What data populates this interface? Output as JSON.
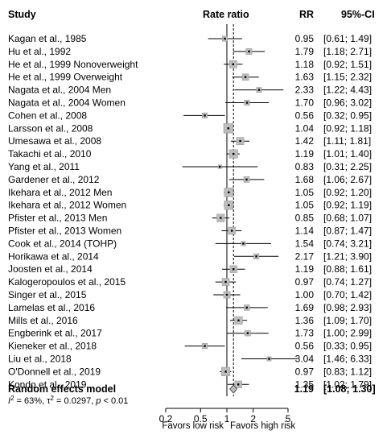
{
  "chart_data": {
    "type": "forest",
    "headers": {
      "study": "Study",
      "rate": "Rate ratio",
      "rr": "RR",
      "ci": "95%-CI"
    },
    "studies": [
      {
        "label": "Kagan et al., 1985",
        "rr": 0.95,
        "lo": 0.61,
        "hi": 1.49,
        "rr_text": "0.95",
        "ci_text": "[0.61; 1.49]",
        "weight": 2.6
      },
      {
        "label": "Hu et al., 1992",
        "rr": 1.79,
        "lo": 1.18,
        "hi": 2.71,
        "rr_text": "1.79",
        "ci_text": "[1.18; 2.71]",
        "weight": 3.2
      },
      {
        "label": "He et al., 1999 Nonoverweight",
        "rr": 1.18,
        "lo": 0.92,
        "hi": 1.51,
        "rr_text": "1.18",
        "ci_text": "[0.92; 1.51]",
        "weight": 4.6
      },
      {
        "label": "He et al., 1999 Overweight",
        "rr": 1.63,
        "lo": 1.15,
        "hi": 2.32,
        "rr_text": "1.63",
        "ci_text": "[1.15; 2.32]",
        "weight": 3.6
      },
      {
        "label": "Nagata et al., 2004 Men",
        "rr": 2.33,
        "lo": 1.22,
        "hi": 4.43,
        "rr_text": "2.33",
        "ci_text": "[1.22; 4.43]",
        "weight": 2.4
      },
      {
        "label": "Nagata et al., 2004 Women",
        "rr": 1.7,
        "lo": 0.96,
        "hi": 3.02,
        "rr_text": "1.70",
        "ci_text": "[0.96; 3.02]",
        "weight": 2.6
      },
      {
        "label": "Cohen et al., 2008",
        "rr": 0.56,
        "lo": 0.32,
        "hi": 0.95,
        "rr_text": "0.56",
        "ci_text": "[0.32; 0.95]",
        "weight": 2.6
      },
      {
        "label": "Larsson et al., 2008",
        "rr": 1.04,
        "lo": 0.92,
        "hi": 1.18,
        "rr_text": "1.04",
        "ci_text": "[0.92; 1.18]",
        "weight": 6.4
      },
      {
        "label": "Umesawa et al., 2008",
        "rr": 1.42,
        "lo": 1.11,
        "hi": 1.81,
        "rr_text": "1.42",
        "ci_text": "[1.11; 1.81]",
        "weight": 4.6
      },
      {
        "label": "Takachi et al., 2010",
        "rr": 1.19,
        "lo": 1.01,
        "hi": 1.4,
        "rr_text": "1.19",
        "ci_text": "[1.01; 1.40]",
        "weight": 5.4
      },
      {
        "label": "Yang et al., 2011",
        "rr": 0.83,
        "lo": 0.31,
        "hi": 2.25,
        "rr_text": "0.83",
        "ci_text": "[0.31; 2.25]",
        "weight": 1.0
      },
      {
        "label": "Gardener et al., 2012",
        "rr": 1.68,
        "lo": 1.06,
        "hi": 2.67,
        "rr_text": "1.68",
        "ci_text": "[1.06; 2.67]",
        "weight": 3.0
      },
      {
        "label": "Ikehara et al., 2012 Men",
        "rr": 1.05,
        "lo": 0.92,
        "hi": 1.2,
        "rr_text": "1.05",
        "ci_text": "[0.92; 1.20]",
        "weight": 5.8
      },
      {
        "label": "Ikehara et al., 2012 Women",
        "rr": 1.05,
        "lo": 0.92,
        "hi": 1.19,
        "rr_text": "1.05",
        "ci_text": "[0.92; 1.19]",
        "weight": 5.8
      },
      {
        "label": "Pfister et al., 2013 Men",
        "rr": 0.85,
        "lo": 0.68,
        "hi": 1.07,
        "rr_text": "0.85",
        "ci_text": "[0.68; 1.07]",
        "weight": 4.8
      },
      {
        "label": "Pfister et al., 2013 Women",
        "rr": 1.14,
        "lo": 0.87,
        "hi": 1.47,
        "rr_text": "1.14",
        "ci_text": "[0.87; 1.47]",
        "weight": 4.4
      },
      {
        "label": "Cook et al., 2014 (TOHP)",
        "rr": 1.54,
        "lo": 0.74,
        "hi": 3.21,
        "rr_text": "1.54",
        "ci_text": "[0.74; 3.21]",
        "weight": 1.8
      },
      {
        "label": "Horikawa et al., 2014",
        "rr": 2.17,
        "lo": 1.21,
        "hi": 3.9,
        "rr_text": "2.17",
        "ci_text": "[1.21; 3.90]",
        "weight": 2.6
      },
      {
        "label": "Joosten et al., 2014",
        "rr": 1.19,
        "lo": 0.88,
        "hi": 1.61,
        "rr_text": "1.19",
        "ci_text": "[0.88; 1.61]",
        "weight": 4.2
      },
      {
        "label": "Kalogeropoulos et al., 2015",
        "rr": 0.97,
        "lo": 0.74,
        "hi": 1.27,
        "rr_text": "0.97",
        "ci_text": "[0.74; 1.27]",
        "weight": 4.4
      },
      {
        "label": "Singer et al., 2015",
        "rr": 1.0,
        "lo": 0.7,
        "hi": 1.42,
        "rr_text": "1.00",
        "ci_text": "[0.70; 1.42]",
        "weight": 3.8
      },
      {
        "label": "Lamelas et al., 2016",
        "rr": 1.69,
        "lo": 0.98,
        "hi": 2.93,
        "rr_text": "1.69",
        "ci_text": "[0.98; 2.93]",
        "weight": 2.8
      },
      {
        "label": "Mills et al., 2016",
        "rr": 1.36,
        "lo": 1.09,
        "hi": 1.7,
        "rr_text": "1.36",
        "ci_text": "[1.09; 1.70]",
        "weight": 4.8
      },
      {
        "label": "Engberink et al., 2017",
        "rr": 1.73,
        "lo": 1.0,
        "hi": 2.99,
        "rr_text": "1.73",
        "ci_text": "[1.00; 2.99]",
        "weight": 2.8
      },
      {
        "label": "Kieneker et al., 2018",
        "rr": 0.56,
        "lo": 0.33,
        "hi": 0.95,
        "rr_text": "0.56",
        "ci_text": "[0.33; 0.95]",
        "weight": 2.6
      },
      {
        "label": "Liu et al., 2018",
        "rr": 3.04,
        "lo": 1.46,
        "hi": 6.33,
        "rr_text": "3.04",
        "ci_text": "[1.46; 6.33]",
        "weight": 1.6
      },
      {
        "label": "O'Donnell et al., 2019",
        "rr": 0.97,
        "lo": 0.83,
        "hi": 1.12,
        "rr_text": "0.97",
        "ci_text": "[0.83; 1.12]",
        "weight": 5.6
      },
      {
        "label": "Kondo et al., 2019",
        "rr": 1.35,
        "lo": 1.02,
        "hi": 1.79,
        "rr_text": "1.35",
        "ci_text": "[1.02; 1.79]",
        "weight": 4.2
      }
    ],
    "summary": {
      "label": "Random effects model",
      "rr": 1.19,
      "lo": 1.08,
      "hi": 1.3,
      "rr_text": "1.19",
      "ci_text": "[1.08; 1.30]"
    },
    "heterogeneity": {
      "i2": "63%",
      "tau2": "0.0297",
      "p": "< 0.01"
    },
    "x_axis": {
      "scale": "log",
      "range": [
        0.2,
        5
      ],
      "ticks": [
        0.2,
        0.5,
        1,
        2,
        5
      ],
      "tick_labels": [
        "0.2",
        "0.5",
        "1",
        "2",
        "5"
      ]
    },
    "reference_line": 1,
    "summary_line": 1.19,
    "favors_left": "Favors low risk",
    "favors_right": "Favors high risk"
  }
}
